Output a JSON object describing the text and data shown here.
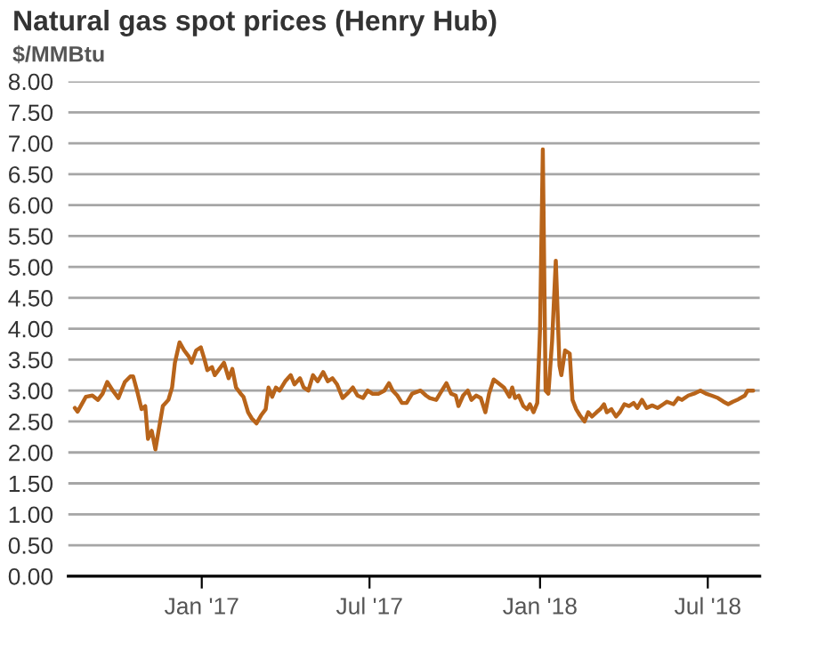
{
  "chart_data": {
    "type": "line",
    "title": "Natural gas spot prices (Henry Hub)",
    "subtitle": "$/MMBtu",
    "x": [
      "2016-08-17",
      "2016-08-20",
      "2016-08-29",
      "2016-09-05",
      "2016-09-11",
      "2016-09-16",
      "2016-09-21",
      "2016-09-27",
      "2016-10-03",
      "2016-10-10",
      "2016-10-16",
      "2016-10-19",
      "2016-10-24",
      "2016-10-28",
      "2016-11-01",
      "2016-11-04",
      "2016-11-08",
      "2016-11-12",
      "2016-11-16",
      "2016-11-20",
      "2016-11-26",
      "2016-11-30",
      "2016-12-03",
      "2016-12-08",
      "2016-12-13",
      "2016-12-18",
      "2016-12-21",
      "2016-12-26",
      "2016-12-31",
      "2017-01-04",
      "2017-01-07",
      "2017-01-12",
      "2017-01-15",
      "2017-01-20",
      "2017-01-25",
      "2017-01-30",
      "2017-02-03",
      "2017-02-07",
      "2017-02-12",
      "2017-02-15",
      "2017-02-20",
      "2017-02-24",
      "2017-03-01",
      "2017-03-06",
      "2017-03-11",
      "2017-03-14",
      "2017-03-18",
      "2017-03-22",
      "2017-03-26",
      "2017-04-01",
      "2017-04-07",
      "2017-04-11",
      "2017-04-17",
      "2017-04-21",
      "2017-04-26",
      "2017-05-01",
      "2017-05-06",
      "2017-05-12",
      "2017-05-17",
      "2017-05-22",
      "2017-05-27",
      "2017-06-02",
      "2017-06-07",
      "2017-06-13",
      "2017-06-18",
      "2017-06-24",
      "2017-06-29",
      "2017-07-04",
      "2017-07-11",
      "2017-07-17",
      "2017-07-22",
      "2017-07-26",
      "2017-07-31",
      "2017-08-05",
      "2017-08-10",
      "2017-08-16",
      "2017-08-25",
      "2017-08-31",
      "2017-09-04",
      "2017-09-11",
      "2017-09-15",
      "2017-09-22",
      "2017-09-27",
      "2017-10-02",
      "2017-10-05",
      "2017-10-10",
      "2017-10-15",
      "2017-10-19",
      "2017-10-24",
      "2017-10-29",
      "2017-11-03",
      "2017-11-07",
      "2017-11-12",
      "2017-11-17",
      "2017-11-23",
      "2017-11-29",
      "2017-12-02",
      "2017-12-05",
      "2017-12-09",
      "2017-12-14",
      "2017-12-18",
      "2017-12-21",
      "2017-12-25",
      "2017-12-29",
      "2018-01-01",
      "2018-01-04",
      "2018-01-07",
      "2018-01-10",
      "2018-01-14",
      "2018-01-18",
      "2018-01-22",
      "2018-01-24",
      "2018-01-28",
      "2018-02-02",
      "2018-02-05",
      "2018-02-09",
      "2018-02-13",
      "2018-02-18",
      "2018-02-22",
      "2018-02-26",
      "2018-03-03",
      "2018-03-07",
      "2018-03-11",
      "2018-03-14",
      "2018-03-19",
      "2018-03-24",
      "2018-03-28",
      "2018-04-02",
      "2018-04-07",
      "2018-04-12",
      "2018-04-16",
      "2018-04-21",
      "2018-04-26",
      "2018-05-02",
      "2018-05-08",
      "2018-05-14",
      "2018-05-18",
      "2018-05-25",
      "2018-05-30",
      "2018-06-03",
      "2018-06-10",
      "2018-06-16",
      "2018-06-23",
      "2018-06-29",
      "2018-07-05",
      "2018-07-12",
      "2018-07-18",
      "2018-07-23",
      "2018-07-28",
      "2018-08-03",
      "2018-08-10",
      "2018-08-13",
      "2018-08-19"
    ],
    "series": [
      {
        "color": "#b8641a",
        "values": [
          2.72,
          2.66,
          2.9,
          2.92,
          2.85,
          2.95,
          3.14,
          3.0,
          2.88,
          3.14,
          3.23,
          3.23,
          2.95,
          2.7,
          2.75,
          2.22,
          2.35,
          2.05,
          2.4,
          2.75,
          2.85,
          3.05,
          3.45,
          3.78,
          3.65,
          3.55,
          3.45,
          3.65,
          3.7,
          3.5,
          3.33,
          3.38,
          3.25,
          3.35,
          3.45,
          3.2,
          3.35,
          3.05,
          2.95,
          2.9,
          2.65,
          2.55,
          2.47,
          2.6,
          2.7,
          3.05,
          2.9,
          3.05,
          3.0,
          3.15,
          3.25,
          3.1,
          3.2,
          3.05,
          3.0,
          3.25,
          3.15,
          3.3,
          3.15,
          3.2,
          3.1,
          2.88,
          2.95,
          3.05,
          2.92,
          2.88,
          3.0,
          2.95,
          2.95,
          3.0,
          3.12,
          3.0,
          2.92,
          2.8,
          2.8,
          2.95,
          3.0,
          2.92,
          2.88,
          2.85,
          2.95,
          3.12,
          2.95,
          2.92,
          2.75,
          2.92,
          3.0,
          2.85,
          2.92,
          2.88,
          2.65,
          2.95,
          3.18,
          3.12,
          3.05,
          2.9,
          3.05,
          2.88,
          2.92,
          2.75,
          2.7,
          2.78,
          2.65,
          2.8,
          4.0,
          6.9,
          3.0,
          2.95,
          3.8,
          5.1,
          3.4,
          3.25,
          3.65,
          3.6,
          2.85,
          2.7,
          2.6,
          2.5,
          2.65,
          2.58,
          2.65,
          2.7,
          2.78,
          2.65,
          2.7,
          2.58,
          2.65,
          2.78,
          2.75,
          2.8,
          2.72,
          2.85,
          2.72,
          2.76,
          2.72,
          2.78,
          2.82,
          2.78,
          2.88,
          2.85,
          2.92,
          2.95,
          3.0,
          2.95,
          2.92,
          2.88,
          2.82,
          2.78,
          2.82,
          2.86,
          2.92,
          3.0,
          3.0
        ]
      }
    ],
    "xlim": [
      "2016-08-10",
      "2018-08-26"
    ],
    "xticks": [
      {
        "value": "2017-01-01",
        "label": "Jan '17"
      },
      {
        "value": "2017-07-01",
        "label": "Jul '17"
      },
      {
        "value": "2018-01-01",
        "label": "Jan '18"
      },
      {
        "value": "2018-07-01",
        "label": "Jul '18"
      }
    ],
    "ylim": [
      0,
      8
    ],
    "yticks": [
      {
        "value": 0,
        "label": "0.00"
      },
      {
        "value": 0.5,
        "label": "0.50"
      },
      {
        "value": 1,
        "label": "1.00"
      },
      {
        "value": 1.5,
        "label": "1.50"
      },
      {
        "value": 2,
        "label": "2.00"
      },
      {
        "value": 2.5,
        "label": "2.50"
      },
      {
        "value": 3,
        "label": "3.00"
      },
      {
        "value": 3.5,
        "label": "3.50"
      },
      {
        "value": 4,
        "label": "4.00"
      },
      {
        "value": 4.5,
        "label": "4.50"
      },
      {
        "value": 5,
        "label": "5.00"
      },
      {
        "value": 5.5,
        "label": "5.50"
      },
      {
        "value": 6,
        "label": "6.00"
      },
      {
        "value": 6.5,
        "label": "6.50"
      },
      {
        "value": 7,
        "label": "7.00"
      },
      {
        "value": 7.5,
        "label": "7.50"
      },
      {
        "value": 8,
        "label": "8.00"
      }
    ],
    "grid": "y",
    "marker": "none",
    "line_style": "solid"
  }
}
